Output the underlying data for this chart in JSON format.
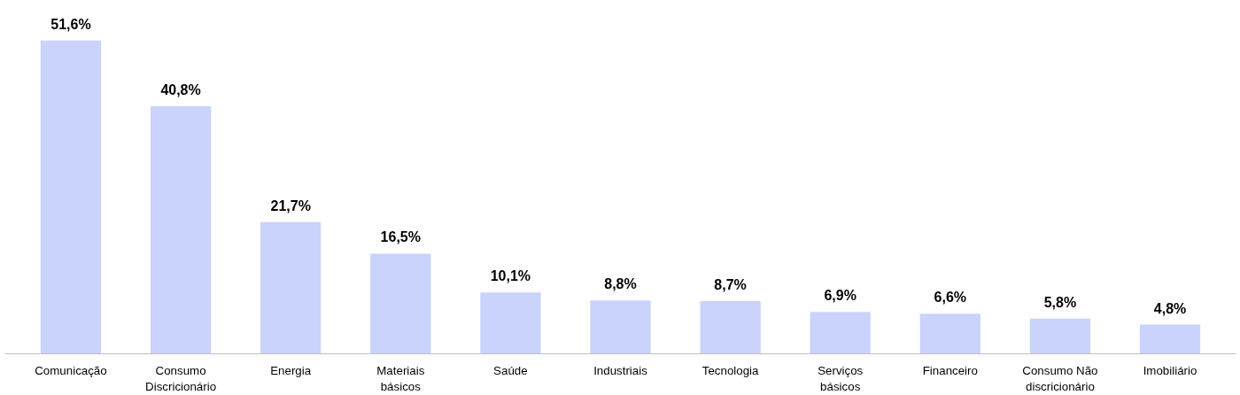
{
  "chart_data": {
    "type": "bar",
    "categories": [
      "Comunicação",
      "Consumo Discricionário",
      "Energia",
      "Materiais básicos",
      "Saúde",
      "Industriais",
      "Tecnologia",
      "Serviços básicos",
      "Financeiro",
      "Consumo Não discricionário",
      "Imobiliário"
    ],
    "values": [
      51.6,
      40.8,
      21.7,
      16.5,
      10.1,
      8.8,
      8.7,
      6.9,
      6.6,
      5.8,
      4.8
    ],
    "value_labels": [
      "51,6%",
      "40,8%",
      "21,7%",
      "16,5%",
      "10,1%",
      "8,8%",
      "8,7%",
      "6,9%",
      "6,6%",
      "5,8%",
      "4,8%"
    ],
    "color": "#c9d3fb"
  }
}
